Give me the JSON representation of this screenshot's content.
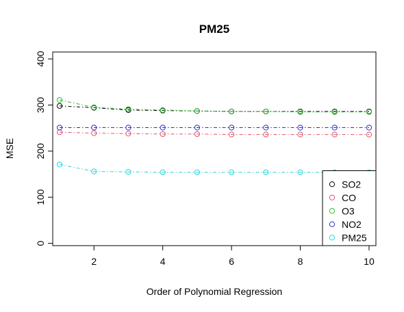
{
  "chart_data": {
    "type": "line",
    "title": "PM25",
    "xlabel": "Order of Polynomial Regression",
    "ylabel": "MSE",
    "x": [
      1,
      2,
      3,
      4,
      5,
      6,
      7,
      8,
      9,
      10
    ],
    "xlim": [
      0.8,
      10.2
    ],
    "ylim": [
      -5,
      415
    ],
    "x_ticks": [
      2,
      4,
      6,
      8,
      10
    ],
    "y_ticks": [
      0,
      100,
      200,
      300,
      400
    ],
    "grid": false,
    "legend_position": "bottom-right",
    "series": [
      {
        "name": "SO2",
        "color": "#000000",
        "values": [
          298,
          294,
          289,
          288,
          287,
          286,
          286,
          286,
          286,
          286
        ]
      },
      {
        "name": "CO",
        "color": "#df536b",
        "values": [
          241,
          239,
          238,
          237,
          237,
          236,
          236,
          236,
          236,
          236
        ]
      },
      {
        "name": "O3",
        "color": "#2fb82f",
        "values": [
          311,
          295,
          291,
          289,
          287,
          286,
          286,
          285,
          285,
          285
        ]
      },
      {
        "name": "NO2",
        "color": "#2c2cc8",
        "values": [
          251,
          251,
          251,
          251,
          251,
          251,
          251,
          251,
          251,
          251
        ]
      },
      {
        "name": "PM25",
        "color": "#22d3d6",
        "values": [
          171,
          156,
          155,
          154,
          154,
          154,
          154,
          154,
          154,
          154
        ]
      }
    ]
  }
}
